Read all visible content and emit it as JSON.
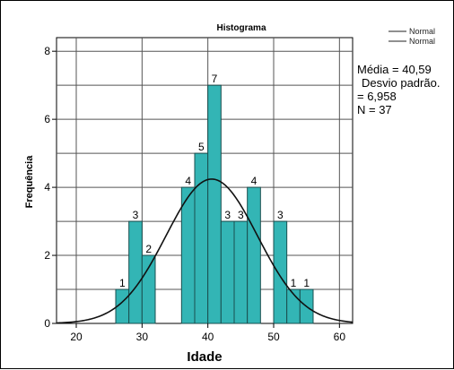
{
  "chart_data": {
    "type": "bar",
    "title": "Histograma",
    "xlabel": "Idade",
    "ylabel": "Frequência",
    "xlim": [
      17,
      62
    ],
    "ylim": [
      0,
      8.4
    ],
    "x_ticks": [
      "20",
      "30",
      "40",
      "50",
      "60"
    ],
    "y_ticks": [
      "0",
      "2",
      "4",
      "6",
      "8"
    ],
    "bin_width": 2,
    "bins": [
      {
        "x0": 26,
        "x1": 28,
        "value": 1,
        "label": "1"
      },
      {
        "x0": 28,
        "x1": 30,
        "value": 3,
        "label": "3"
      },
      {
        "x0": 30,
        "x1": 32,
        "value": 2,
        "label": "2"
      },
      {
        "x0": 36,
        "x1": 38,
        "value": 4,
        "label": "4"
      },
      {
        "x0": 38,
        "x1": 40,
        "value": 5,
        "label": "5"
      },
      {
        "x0": 40,
        "x1": 42,
        "value": 7,
        "label": "7"
      },
      {
        "x0": 42,
        "x1": 44,
        "value": 3,
        "label": "3"
      },
      {
        "x0": 44,
        "x1": 46,
        "value": 3,
        "label": "3"
      },
      {
        "x0": 46,
        "x1": 48,
        "value": 4,
        "label": "4"
      },
      {
        "x0": 50,
        "x1": 52,
        "value": 3,
        "label": "3"
      },
      {
        "x0": 52,
        "x1": 54,
        "value": 1,
        "label": "1"
      },
      {
        "x0": 54,
        "x1": 56,
        "value": 1,
        "label": "1"
      }
    ],
    "normal_curve": {
      "mean": 40.59,
      "sd": 6.958,
      "n": 37
    },
    "legend": [
      "Normal",
      "Normal"
    ],
    "legend_position": "top-right",
    "stats_text": [
      "Média = 40,59",
      "Desvio padrão.",
      "= 6,958",
      "N = 37"
    ],
    "grid": true,
    "bar_color": "#33b5b5",
    "bar_edge_color": "#1a4f4f",
    "curve_color": "#111111"
  }
}
